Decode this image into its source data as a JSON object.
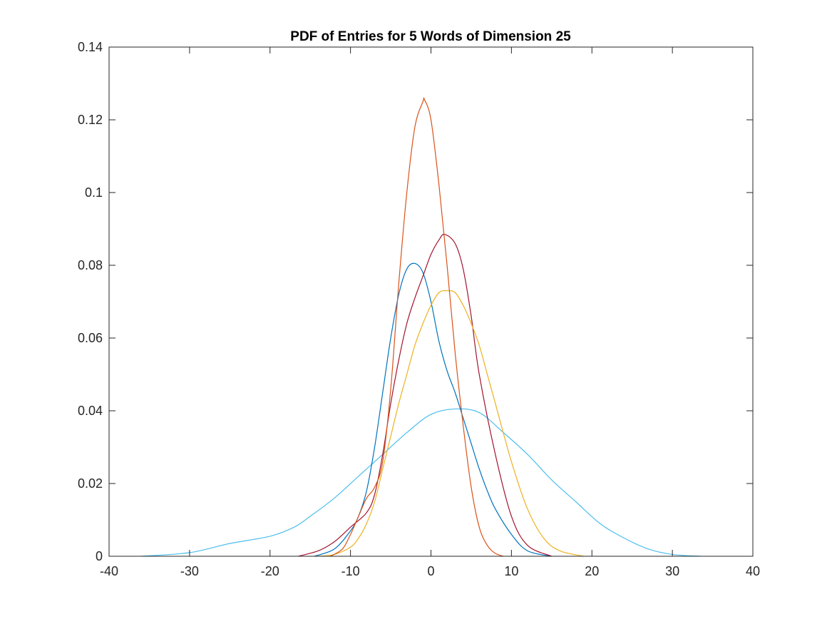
{
  "chart_data": {
    "type": "line",
    "title": "PDF of Entries for 5 Words of Dimension 25",
    "xlabel": "",
    "ylabel": "",
    "xlim": [
      -40,
      40
    ],
    "ylim": [
      0,
      0.14
    ],
    "xticks": [
      -40,
      -30,
      -20,
      -10,
      0,
      10,
      20,
      30,
      40
    ],
    "xtick_labels": [
      "-40",
      "-30",
      "-20",
      "-10",
      "0",
      "10",
      "20",
      "30",
      "40"
    ],
    "yticks": [
      0,
      0.02,
      0.04,
      0.06,
      0.08,
      0.1,
      0.12,
      0.14
    ],
    "ytick_labels": [
      "0",
      "0.02",
      "0.04",
      "0.06",
      "0.08",
      "0.1",
      "0.12",
      "0.14"
    ],
    "grid": false,
    "legend": "none",
    "series": [
      {
        "color": "#4DBEEE",
        "x": [
          -36,
          -30,
          -25,
          -20,
          -17,
          -15,
          -12,
          -9,
          -6,
          -3,
          0,
          3,
          6,
          9,
          12,
          15,
          18,
          21,
          24,
          27,
          30,
          33.5
        ],
        "y": [
          0,
          0.001,
          0.0035,
          0.0055,
          0.008,
          0.011,
          0.016,
          0.022,
          0.028,
          0.034,
          0.039,
          0.0405,
          0.0395,
          0.034,
          0.028,
          0.021,
          0.015,
          0.009,
          0.005,
          0.002,
          0.0005,
          0
        ]
      },
      {
        "color": "#0072BD",
        "x": [
          -14.5,
          -12,
          -10,
          -9,
          -8,
          -7,
          -6,
          -5,
          -4,
          -3,
          -2,
          -1,
          0,
          1,
          2,
          3,
          4,
          5,
          6,
          7,
          8,
          10,
          12,
          15
        ],
        "y": [
          0,
          0.002,
          0.007,
          0.011,
          0.018,
          0.03,
          0.045,
          0.06,
          0.072,
          0.079,
          0.0805,
          0.078,
          0.07,
          0.059,
          0.051,
          0.045,
          0.038,
          0.031,
          0.024,
          0.018,
          0.013,
          0.006,
          0.0015,
          0
        ]
      },
      {
        "color": "#A2142F",
        "x": [
          -16.5,
          -14,
          -12,
          -10,
          -8,
          -7,
          -6,
          -5,
          -4,
          -3,
          -2,
          -1,
          0,
          1,
          1.7,
          3,
          4,
          5,
          6,
          8,
          10,
          12,
          15
        ],
        "y": [
          0,
          0.0015,
          0.004,
          0.008,
          0.012,
          0.017,
          0.028,
          0.042,
          0.054,
          0.064,
          0.071,
          0.077,
          0.083,
          0.087,
          0.0885,
          0.086,
          0.079,
          0.066,
          0.05,
          0.028,
          0.011,
          0.003,
          0
        ]
      },
      {
        "color": "#EDB120",
        "x": [
          -14,
          -12,
          -10,
          -9,
          -8,
          -7,
          -6,
          -5,
          -4,
          -3,
          -2,
          -1,
          0,
          1,
          2,
          3,
          4,
          5,
          6,
          7,
          8,
          10,
          12,
          14,
          16,
          19
        ],
        "y": [
          0,
          0.0005,
          0.0025,
          0.005,
          0.009,
          0.015,
          0.024,
          0.033,
          0.042,
          0.05,
          0.058,
          0.064,
          0.069,
          0.0725,
          0.073,
          0.0725,
          0.069,
          0.064,
          0.058,
          0.05,
          0.042,
          0.026,
          0.013,
          0.005,
          0.0015,
          0
        ]
      },
      {
        "color": "#D95319",
        "x": [
          -12.5,
          -11,
          -10,
          -9,
          -8,
          -7,
          -6,
          -5,
          -4,
          -3,
          -2,
          -1,
          -0.8,
          0,
          1,
          2,
          3,
          4,
          5,
          6,
          7,
          8,
          9
        ],
        "y": [
          0,
          0.002,
          0.006,
          0.011,
          0.016,
          0.019,
          0.026,
          0.046,
          0.075,
          0.1,
          0.118,
          0.125,
          0.1255,
          0.12,
          0.102,
          0.08,
          0.056,
          0.036,
          0.019,
          0.008,
          0.003,
          0.0008,
          0
        ]
      }
    ]
  }
}
